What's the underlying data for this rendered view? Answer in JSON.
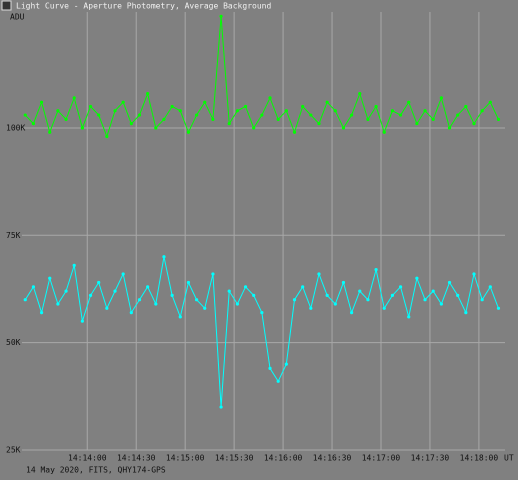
{
  "window_title": "Light Curve - Aperture Photometry, Average Background",
  "chart_data": {
    "type": "line",
    "y_label": "ADU",
    "x_label": "UT",
    "footer": "14 May 2020, FITS, QHY174-GPS",
    "x": [
      "14:13:22",
      "14:13:27",
      "14:13:32",
      "14:13:37",
      "14:13:42",
      "14:13:47",
      "14:13:52",
      "14:13:57",
      "14:14:02",
      "14:14:07",
      "14:14:12",
      "14:14:17",
      "14:14:22",
      "14:14:27",
      "14:14:32",
      "14:14:37",
      "14:14:42",
      "14:14:47",
      "14:14:52",
      "14:14:57",
      "14:15:02",
      "14:15:07",
      "14:15:12",
      "14:15:17",
      "14:15:22",
      "14:15:27",
      "14:15:32",
      "14:15:37",
      "14:15:42",
      "14:15:47",
      "14:15:52",
      "14:15:57",
      "14:16:02",
      "14:16:07",
      "14:16:12",
      "14:16:17",
      "14:16:22",
      "14:16:27",
      "14:16:32",
      "14:16:37",
      "14:16:42",
      "14:16:47",
      "14:16:52",
      "14:16:57",
      "14:17:02",
      "14:17:07",
      "14:17:12",
      "14:17:17",
      "14:17:22",
      "14:17:27",
      "14:17:32",
      "14:17:37",
      "14:17:42",
      "14:17:47",
      "14:17:52",
      "14:17:57",
      "14:18:02",
      "14:18:07",
      "14:18:12"
    ],
    "series": [
      {
        "color": "#00ff00",
        "values": [
          103000,
          101000,
          106000,
          99000,
          104000,
          102000,
          107000,
          100000,
          105000,
          103000,
          98000,
          104000,
          106000,
          101000,
          103000,
          108000,
          100000,
          102000,
          105000,
          104000,
          99000,
          103000,
          106000,
          102000,
          126000,
          101000,
          104000,
          105000,
          100000,
          103000,
          107000,
          102000,
          104000,
          99000,
          105000,
          103000,
          101000,
          106000,
          104000,
          100000,
          103000,
          108000,
          102000,
          105000,
          99000,
          104000,
          103000,
          106000,
          101000,
          104000,
          102000,
          107000,
          100000,
          103000,
          105000,
          101000,
          104000,
          106000,
          102000
        ]
      },
      {
        "color": "#00ffff",
        "values": [
          60000,
          63000,
          57000,
          65000,
          59000,
          62000,
          68000,
          55000,
          61000,
          64000,
          58000,
          62000,
          66000,
          57000,
          60000,
          63000,
          59000,
          70000,
          61000,
          56000,
          64000,
          60000,
          58000,
          66000,
          35000,
          62000,
          59000,
          63000,
          61000,
          57000,
          44000,
          41000,
          45000,
          60000,
          63000,
          58000,
          66000,
          61000,
          59000,
          64000,
          57000,
          62000,
          60000,
          67000,
          58000,
          61000,
          63000,
          56000,
          65000,
          60000,
          62000,
          59000,
          64000,
          61000,
          57000,
          66000,
          60000,
          63000,
          58000
        ]
      }
    ],
    "xlim": [
      "14:13:20",
      "14:18:16"
    ],
    "xticks": [
      "14:14:00",
      "14:14:30",
      "14:15:00",
      "14:15:30",
      "14:16:00",
      "14:16:30",
      "14:17:00",
      "14:17:30",
      "14:18:00"
    ],
    "ylim": [
      25000,
      127000
    ],
    "yticks": [
      {
        "value": 25000,
        "label": "25K"
      },
      {
        "value": 50000,
        "label": "50K"
      },
      {
        "value": 75000,
        "label": "75K"
      },
      {
        "value": 100000,
        "label": "100K"
      }
    ],
    "grid": true
  }
}
